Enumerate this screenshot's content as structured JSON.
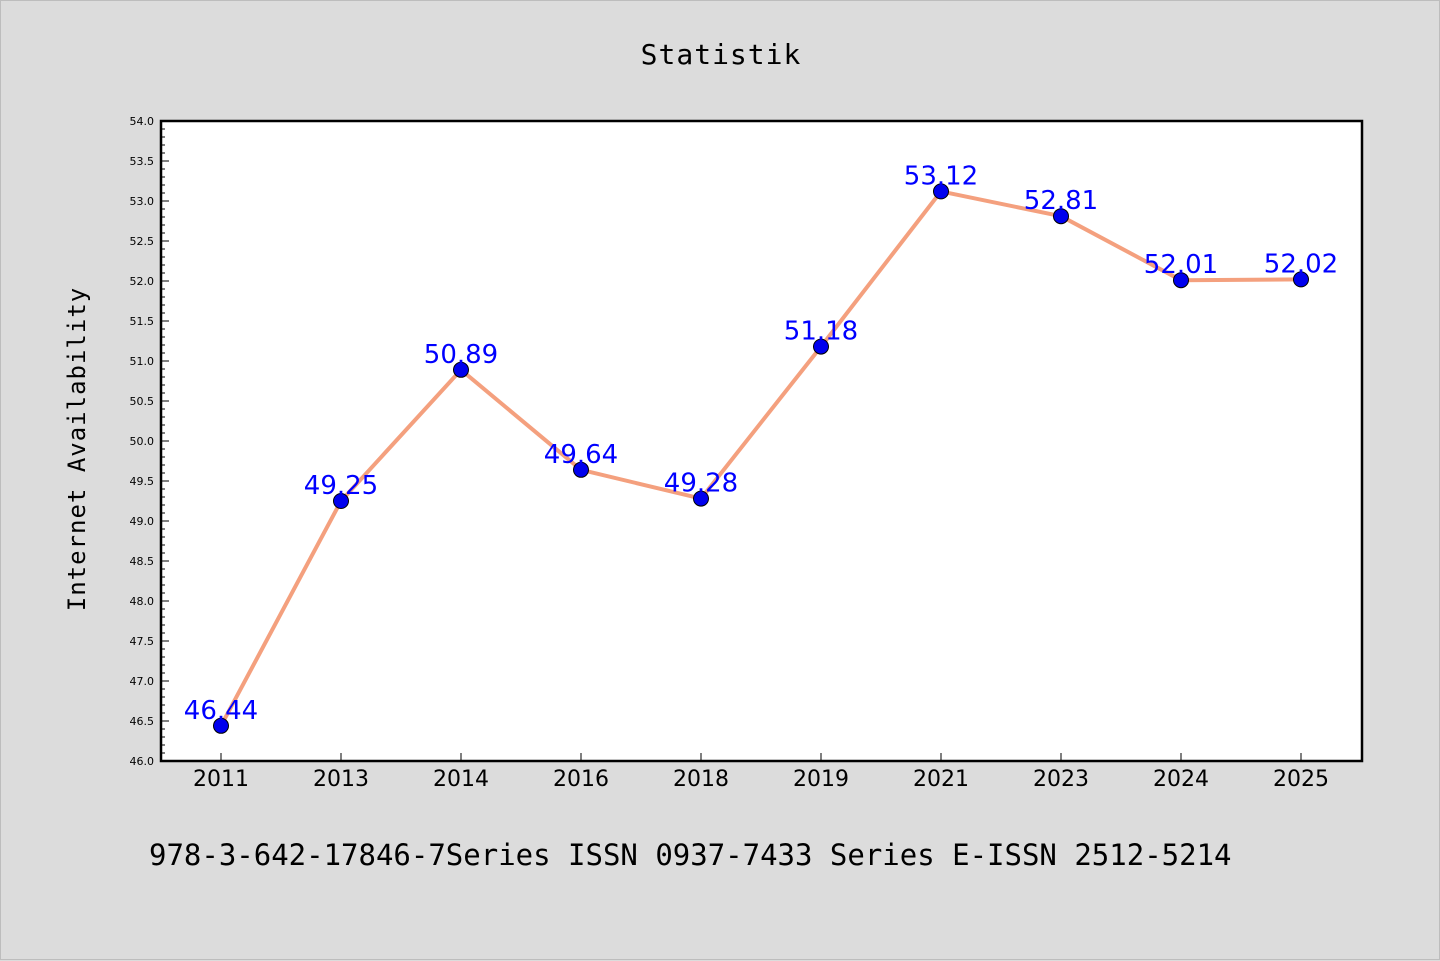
{
  "footer_text": "978-3-642-17846-7Series ISSN 0937-7433 Series E-ISSN 2512-5214",
  "chart_data": {
    "type": "line",
    "title": "Statistik",
    "xlabel": "",
    "ylabel": "Internet Availability",
    "categories": [
      "2011",
      "2013",
      "2014",
      "2016",
      "2018",
      "2019",
      "2021",
      "2023",
      "2024",
      "2025"
    ],
    "series": [
      {
        "values": [
          46.44,
          49.25,
          50.89,
          49.64,
          49.28,
          51.18,
          53.12,
          52.81,
          52.01,
          52.02
        ],
        "data_labels": [
          "46.44",
          "49.25",
          "50.89",
          "49.64",
          "49.28",
          "51.18",
          "53.12",
          "52.81",
          "52.01",
          "52.02"
        ],
        "line_color": "#f4a07e",
        "marker_color": "#0000ee"
      }
    ],
    "ylim": [
      46.0,
      54.0
    ],
    "yticks": [
      "46.0",
      "46.5",
      "47.0",
      "47.5",
      "48.0",
      "48.5",
      "49.0",
      "49.5",
      "50.0",
      "50.5",
      "51.0",
      "51.5",
      "52.0",
      "52.5",
      "53.0",
      "53.5",
      "54.0"
    ],
    "grid": false,
    "legend": "none",
    "label_color": "#0000ff"
  }
}
